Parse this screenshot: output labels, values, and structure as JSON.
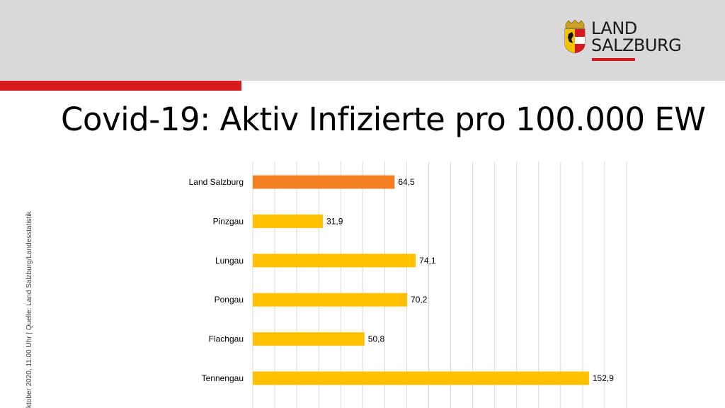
{
  "header": {
    "logo_line1": "LAND",
    "logo_line2": "SALZBURG",
    "title": "Covid-19: Aktiv Infizierte pro 100.000 EW"
  },
  "side_note": "ktober 2020, 11:00 Uhr | Quelle: Land Salzburg/Landesstatistik",
  "colors": {
    "header_band": "#d9d9d9",
    "accent_red": "#d71920",
    "highlight_bar": "#f47f20",
    "bar": "#ffc000"
  },
  "chart_data": {
    "type": "bar",
    "orientation": "horizontal",
    "categories": [
      "Land Salzburg",
      "Pinzgau",
      "Lungau",
      "Pongau",
      "Flachgau",
      "Tennengau"
    ],
    "values": [
      64.5,
      31.9,
      74.1,
      70.2,
      50.8,
      152.9
    ],
    "value_labels": [
      "64,5",
      "31,9",
      "74,1",
      "70,2",
      "50,8",
      "152,9"
    ],
    "highlight_index": 0,
    "xlim": [
      0,
      170
    ],
    "x_gridline_step": 10,
    "grid": true,
    "title": "",
    "xlabel": "",
    "ylabel": ""
  }
}
